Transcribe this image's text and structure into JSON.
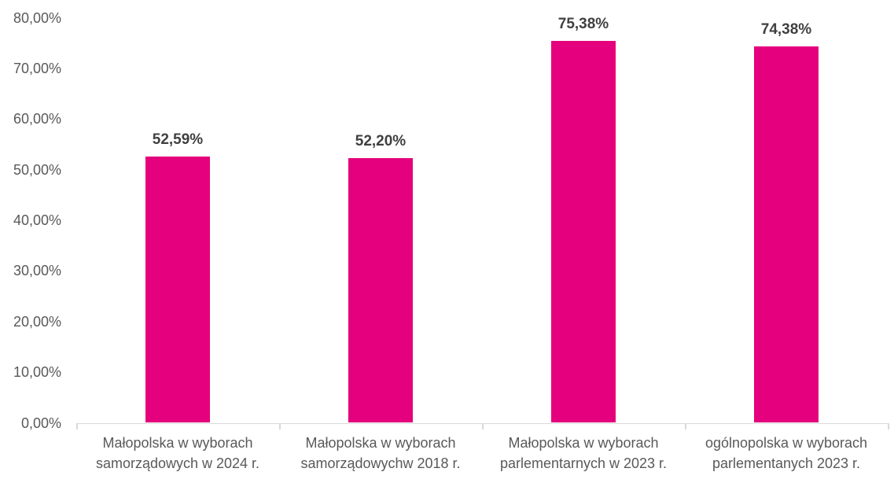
{
  "chart_data": {
    "type": "bar",
    "title": "",
    "xlabel": "",
    "ylabel": "",
    "ylim": [
      0,
      80
    ],
    "grid": false,
    "legend": "none",
    "categories": [
      "Małopolska w wyborach samorządowych w 2024 r.",
      "Małopolska w wyborach samorządowychw 2018 r.",
      "Małopolska w wyborach parlementarnych w 2023 r.",
      "ogólnopolska w wyborach parlementanych 2023 r."
    ],
    "category_lines": [
      [
        "Małopolska w wyborach",
        "samorządowych w 2024 r."
      ],
      [
        "Małopolska w wyborach",
        "samorządowychw 2018 r."
      ],
      [
        "Małopolska w wyborach",
        "parlementarnych w 2023 r."
      ],
      [
        "ogólnopolska w wyborach",
        "parlementanych 2023 r."
      ]
    ],
    "values": [
      52.59,
      52.2,
      75.38,
      74.38
    ],
    "value_labels": [
      "52,59%",
      "52,20%",
      "75,38%",
      "74,38%"
    ],
    "y_ticks": [
      {
        "value": 0,
        "label": "0,00%"
      },
      {
        "value": 10,
        "label": "10,00%"
      },
      {
        "value": 20,
        "label": "20,00%"
      },
      {
        "value": 30,
        "label": "30,00%"
      },
      {
        "value": 40,
        "label": "40,00%"
      },
      {
        "value": 50,
        "label": "50,00%"
      },
      {
        "value": 60,
        "label": "60,00%"
      },
      {
        "value": 70,
        "label": "70,00%"
      },
      {
        "value": 80,
        "label": "80,00%"
      }
    ],
    "colors": {
      "bar": "#E5007D",
      "axis_line": "#D9D9D9",
      "tick_label": "#595959",
      "data_label": "#404040",
      "background": "#FFFFFF"
    }
  }
}
